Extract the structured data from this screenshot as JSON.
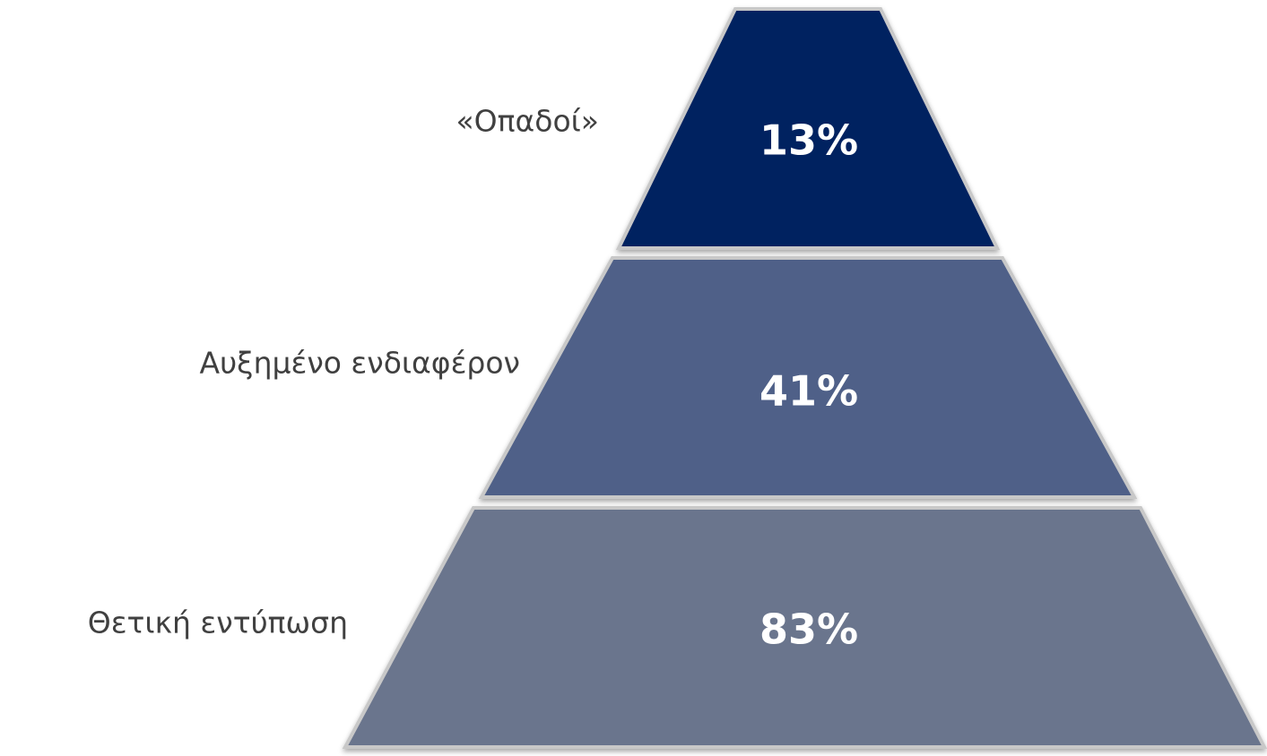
{
  "levels": [
    {
      "label": "«Οπαδοί»",
      "value": "13%"
    },
    {
      "label": "Αυξημένο ενδιαφέρον",
      "value": "41%"
    },
    {
      "label": "Θετική εντύπωση",
      "value": "83%"
    }
  ]
}
